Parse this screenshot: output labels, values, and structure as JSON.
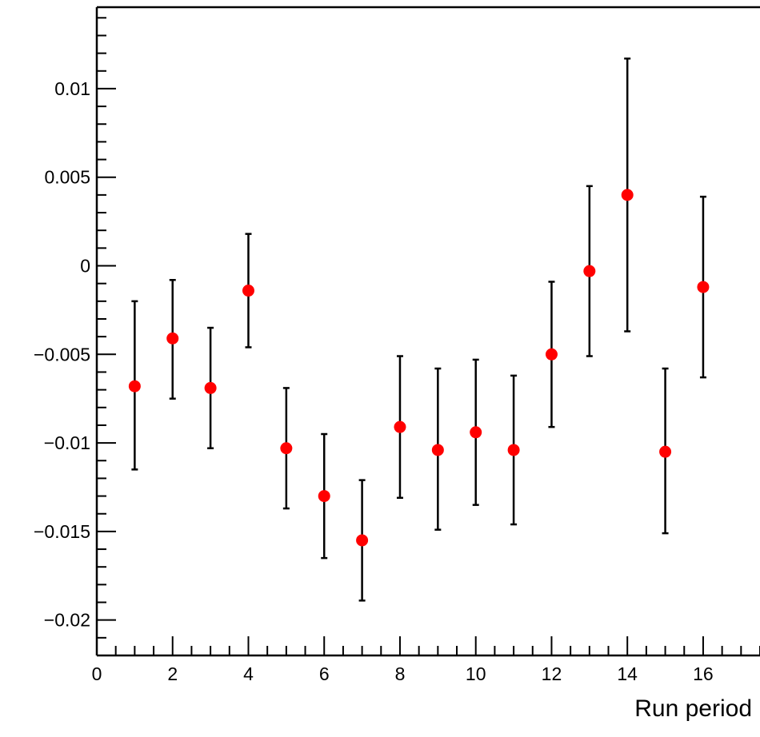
{
  "chart_data": {
    "type": "scatter",
    "title": "",
    "xlabel": "Run period",
    "ylabel": "",
    "xlim": [
      0,
      17.5
    ],
    "ylim": [
      -0.022,
      0.0146
    ],
    "grid": false,
    "x_ticks": [
      0,
      2,
      4,
      6,
      8,
      10,
      12,
      14,
      16
    ],
    "x_tick_labels": [
      "0",
      "2",
      "4",
      "6",
      "8",
      "10",
      "12",
      "14",
      "16"
    ],
    "y_ticks": [
      -0.02,
      -0.015,
      -0.01,
      -0.005,
      0,
      0.005,
      0.01
    ],
    "y_tick_labels": [
      "−0.02",
      "−0.015",
      "−0.01",
      "−0.005",
      "0",
      "0.005",
      "0.01"
    ],
    "series": [
      {
        "marker_color": "#ff0000",
        "errorbar_color": "#000000",
        "points": [
          {
            "x": 1,
            "y": -0.0068,
            "err_low": 0.0047,
            "err_high": 0.0048
          },
          {
            "x": 2,
            "y": -0.0041,
            "err_low": 0.0034,
            "err_high": 0.0033
          },
          {
            "x": 3,
            "y": -0.0069,
            "err_low": 0.0034,
            "err_high": 0.0034
          },
          {
            "x": 4,
            "y": -0.0014,
            "err_low": 0.0032,
            "err_high": 0.0032
          },
          {
            "x": 5,
            "y": -0.0103,
            "err_low": 0.0034,
            "err_high": 0.0034
          },
          {
            "x": 6,
            "y": -0.013,
            "err_low": 0.0035,
            "err_high": 0.0035
          },
          {
            "x": 7,
            "y": -0.0155,
            "err_low": 0.0034,
            "err_high": 0.0034
          },
          {
            "x": 8,
            "y": -0.0091,
            "err_low": 0.004,
            "err_high": 0.004
          },
          {
            "x": 9,
            "y": -0.0104,
            "err_low": 0.0045,
            "err_high": 0.0046
          },
          {
            "x": 10,
            "y": -0.0094,
            "err_low": 0.0041,
            "err_high": 0.0041
          },
          {
            "x": 11,
            "y": -0.0104,
            "err_low": 0.0042,
            "err_high": 0.0042
          },
          {
            "x": 12,
            "y": -0.005,
            "err_low": 0.0041,
            "err_high": 0.0041
          },
          {
            "x": 13,
            "y": -0.0003,
            "err_low": 0.0048,
            "err_high": 0.0048
          },
          {
            "x": 14,
            "y": 0.004,
            "err_low": 0.0077,
            "err_high": 0.0077
          },
          {
            "x": 15,
            "y": -0.0105,
            "err_low": 0.0046,
            "err_high": 0.0047
          },
          {
            "x": 16,
            "y": -0.0012,
            "err_low": 0.0051,
            "err_high": 0.0051
          }
        ]
      }
    ]
  }
}
